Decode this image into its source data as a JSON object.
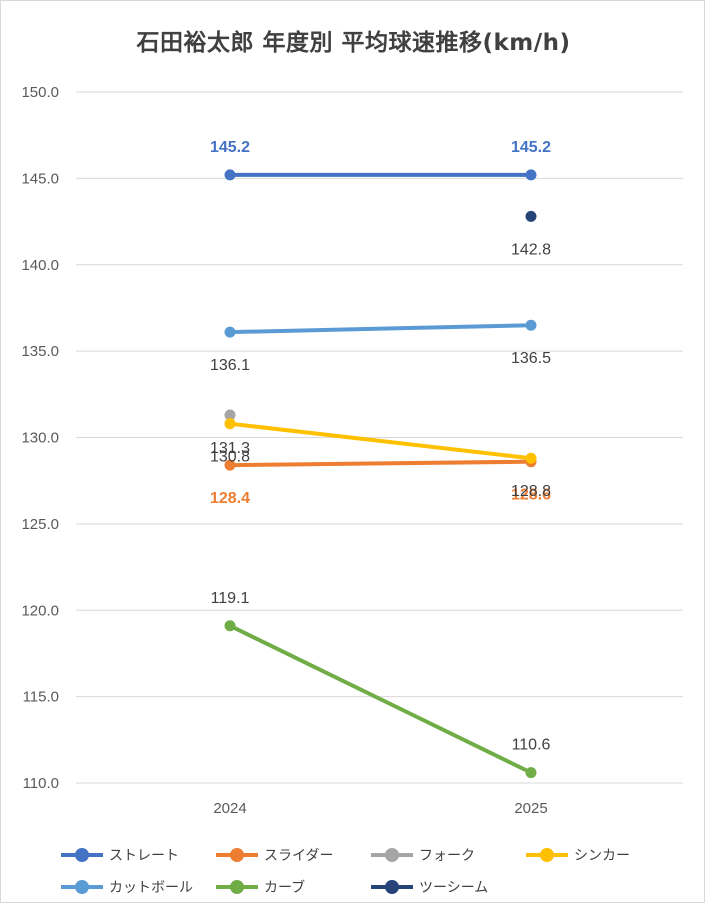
{
  "chart_data": {
    "type": "line",
    "title": "石田裕太郎 年度別 平均球速推移(km/h)",
    "categories": [
      "2024",
      "2025"
    ],
    "ylim": [
      110,
      150
    ],
    "yticks": [
      "110.0",
      "115.0",
      "120.0",
      "125.0",
      "130.0",
      "135.0",
      "140.0",
      "145.0",
      "150.0"
    ],
    "grid": true,
    "legend_position": "bottom",
    "series": [
      {
        "name": "ストレート",
        "color": "#4472c4",
        "label_color": "#4472c4",
        "label_pos": "above",
        "values": [
          145.2,
          145.2
        ]
      },
      {
        "name": "スライダー",
        "color": "#ed7d31",
        "label_color": "#ed7d31",
        "label_pos": "below",
        "values": [
          128.4,
          128.6
        ]
      },
      {
        "name": "フォーク",
        "color": "#a5a5a5",
        "label_color": "#404040",
        "label_pos": "below",
        "values": [
          131.3,
          null
        ]
      },
      {
        "name": "シンカー",
        "color": "#ffc000",
        "label_color": "#404040",
        "label_pos": "below",
        "values": [
          130.8,
          128.8
        ]
      },
      {
        "name": "カットボール",
        "color": "#5b9bd5",
        "label_color": "#404040",
        "label_pos": "below",
        "values": [
          136.1,
          136.5
        ]
      },
      {
        "name": "カーブ",
        "color": "#70ad47",
        "label_color": "#404040",
        "label_pos": "above",
        "values": [
          119.1,
          110.6
        ]
      },
      {
        "name": "ツーシーム",
        "color": "#264478",
        "label_color": "#404040",
        "label_pos": "below",
        "values": [
          null,
          142.8
        ]
      }
    ],
    "data_labels": [
      [
        "145.2",
        "145.2"
      ],
      [
        "128.4",
        "128.6"
      ],
      [
        "131.3",
        ""
      ],
      [
        "130.8",
        "128.8"
      ],
      [
        "136.1",
        "136.5"
      ],
      [
        "119.1",
        "110.6"
      ],
      [
        "",
        "142.8"
      ]
    ]
  }
}
